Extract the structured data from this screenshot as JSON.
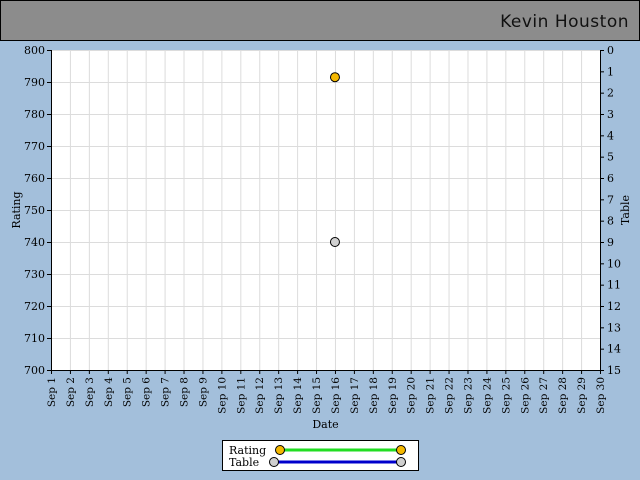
{
  "header": {
    "player_name": "Kevin  Houston"
  },
  "chart_data": {
    "type": "scatter",
    "x_categories": [
      "Sep 1",
      "Sep 2",
      "Sep 3",
      "Sep 4",
      "Sep 5",
      "Sep 6",
      "Sep 7",
      "Sep 8",
      "Sep 9",
      "Sep 10",
      "Sep 11",
      "Sep 12",
      "Sep 13",
      "Sep 14",
      "Sep 15",
      "Sep 16",
      "Sep 17",
      "Sep 18",
      "Sep 19",
      "Sep 20",
      "Sep 21",
      "Sep 22",
      "Sep 23",
      "Sep 24",
      "Sep 25",
      "Sep 26",
      "Sep 27",
      "Sep 28",
      "Sep 29",
      "Sep 30"
    ],
    "xlabel": "Date",
    "ylabel_left": "Rating",
    "ylabel_right": "Table",
    "ylim_left": [
      700,
      800
    ],
    "yticks_left": [
      800,
      790,
      780,
      770,
      760,
      750,
      740,
      730,
      720,
      710,
      700
    ],
    "ylim_right": [
      0,
      15
    ],
    "yticks_right": [
      0,
      1,
      2,
      3,
      4,
      5,
      6,
      7,
      8,
      9,
      10,
      11,
      12,
      13,
      14,
      15
    ],
    "right_axis_inverted": true,
    "grid": true,
    "series": [
      {
        "name": "Rating",
        "axis": "left",
        "color": "#f5b800",
        "line_color": "#22dd22",
        "points": [
          {
            "x": "Sep 16",
            "y": 791.5
          }
        ]
      },
      {
        "name": "Table",
        "axis": "right",
        "color": "#d0d0d0",
        "line_color": "#0000cc",
        "points": [
          {
            "x": "Sep 16",
            "y": 9
          }
        ]
      }
    ],
    "legend_position": "bottom-center"
  }
}
